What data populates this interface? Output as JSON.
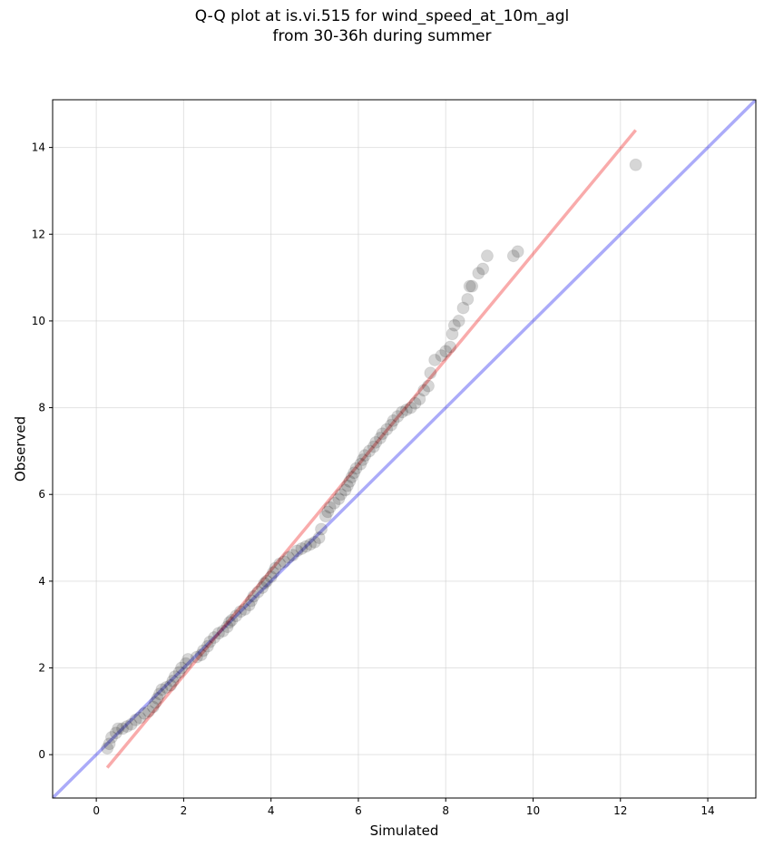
{
  "figure": {
    "title_line1": "Q-Q plot at is.vi.515 for wind_speed_at_10m_agl",
    "title_line2": "from 30-36h during summer"
  },
  "chart_data": {
    "type": "scatter",
    "title": "Q-Q plot at is.vi.515 for wind_speed_at_10m_agl\nfrom 30-36h during summer",
    "xlabel": "Simulated",
    "ylabel": "Observed",
    "xlim": [
      -1.0,
      15.1
    ],
    "ylim": [
      -1.0,
      15.1
    ],
    "xticks": [
      0,
      2,
      4,
      6,
      8,
      10,
      12,
      14
    ],
    "yticks": [
      0,
      2,
      4,
      6,
      8,
      10,
      12,
      14
    ],
    "grid": true,
    "colors": {
      "points": "#000000",
      "reference_line": "#0000ee",
      "fit_line": "#ee0000",
      "grid": "#cccccc"
    },
    "series": [
      {
        "kind": "scatter",
        "points": [
          [
            0.25,
            0.15
          ],
          [
            0.3,
            0.25
          ],
          [
            0.35,
            0.4
          ],
          [
            0.45,
            0.5
          ],
          [
            0.5,
            0.6
          ],
          [
            0.6,
            0.6
          ],
          [
            0.7,
            0.65
          ],
          [
            0.8,
            0.7
          ],
          [
            0.9,
            0.8
          ],
          [
            1.0,
            0.85
          ],
          [
            1.1,
            0.95
          ],
          [
            1.2,
            1.0
          ],
          [
            1.3,
            1.1
          ],
          [
            1.35,
            1.2
          ],
          [
            1.4,
            1.3
          ],
          [
            1.45,
            1.4
          ],
          [
            1.5,
            1.5
          ],
          [
            1.6,
            1.55
          ],
          [
            1.7,
            1.6
          ],
          [
            1.75,
            1.7
          ],
          [
            1.8,
            1.8
          ],
          [
            1.9,
            1.9
          ],
          [
            1.95,
            2.0
          ],
          [
            2.05,
            2.1
          ],
          [
            2.1,
            2.2
          ],
          [
            2.3,
            2.25
          ],
          [
            2.4,
            2.3
          ],
          [
            2.45,
            2.4
          ],
          [
            2.55,
            2.5
          ],
          [
            2.6,
            2.6
          ],
          [
            2.7,
            2.7
          ],
          [
            2.8,
            2.8
          ],
          [
            2.9,
            2.85
          ],
          [
            3.0,
            2.95
          ],
          [
            3.05,
            3.05
          ],
          [
            3.1,
            3.1
          ],
          [
            3.2,
            3.2
          ],
          [
            3.3,
            3.3
          ],
          [
            3.4,
            3.35
          ],
          [
            3.5,
            3.45
          ],
          [
            3.55,
            3.55
          ],
          [
            3.6,
            3.65
          ],
          [
            3.7,
            3.75
          ],
          [
            3.8,
            3.85
          ],
          [
            3.85,
            3.95
          ],
          [
            3.9,
            4.0
          ],
          [
            4.0,
            4.1
          ],
          [
            4.05,
            4.2
          ],
          [
            4.1,
            4.3
          ],
          [
            4.2,
            4.4
          ],
          [
            4.3,
            4.45
          ],
          [
            4.4,
            4.55
          ],
          [
            4.5,
            4.6
          ],
          [
            4.6,
            4.7
          ],
          [
            4.7,
            4.75
          ],
          [
            4.8,
            4.8
          ],
          [
            4.9,
            4.85
          ],
          [
            5.0,
            4.9
          ],
          [
            5.1,
            5.0
          ],
          [
            5.15,
            5.2
          ],
          [
            5.25,
            5.5
          ],
          [
            5.3,
            5.6
          ],
          [
            5.35,
            5.7
          ],
          [
            5.45,
            5.8
          ],
          [
            5.55,
            5.9
          ],
          [
            5.6,
            6.0
          ],
          [
            5.7,
            6.1
          ],
          [
            5.75,
            6.2
          ],
          [
            5.8,
            6.3
          ],
          [
            5.85,
            6.4
          ],
          [
            5.9,
            6.5
          ],
          [
            5.95,
            6.6
          ],
          [
            6.05,
            6.7
          ],
          [
            6.1,
            6.8
          ],
          [
            6.15,
            6.9
          ],
          [
            6.25,
            7.0
          ],
          [
            6.35,
            7.1
          ],
          [
            6.4,
            7.2
          ],
          [
            6.5,
            7.3
          ],
          [
            6.55,
            7.4
          ],
          [
            6.65,
            7.5
          ],
          [
            6.75,
            7.6
          ],
          [
            6.8,
            7.7
          ],
          [
            6.9,
            7.8
          ],
          [
            7.0,
            7.9
          ],
          [
            7.1,
            7.95
          ],
          [
            7.2,
            8.0
          ],
          [
            7.3,
            8.1
          ],
          [
            7.4,
            8.2
          ],
          [
            7.5,
            8.4
          ],
          [
            7.6,
            8.5
          ],
          [
            7.65,
            8.8
          ],
          [
            7.75,
            9.1
          ],
          [
            7.9,
            9.2
          ],
          [
            8.0,
            9.3
          ],
          [
            8.1,
            9.4
          ],
          [
            8.15,
            9.7
          ],
          [
            8.2,
            9.9
          ],
          [
            8.3,
            10.0
          ],
          [
            8.4,
            10.3
          ],
          [
            8.5,
            10.5
          ],
          [
            8.55,
            10.8
          ],
          [
            8.6,
            10.8
          ],
          [
            8.75,
            11.1
          ],
          [
            8.85,
            11.2
          ],
          [
            8.95,
            11.5
          ],
          [
            9.55,
            11.5
          ],
          [
            9.65,
            11.6
          ],
          [
            12.35,
            13.6
          ]
        ]
      },
      {
        "kind": "line",
        "role": "reference",
        "x": [
          -1.0,
          15.1
        ],
        "y": [
          -1.0,
          15.1
        ]
      },
      {
        "kind": "line",
        "role": "fit",
        "x": [
          0.25,
          12.35
        ],
        "y": [
          -0.3,
          14.4
        ]
      }
    ]
  }
}
